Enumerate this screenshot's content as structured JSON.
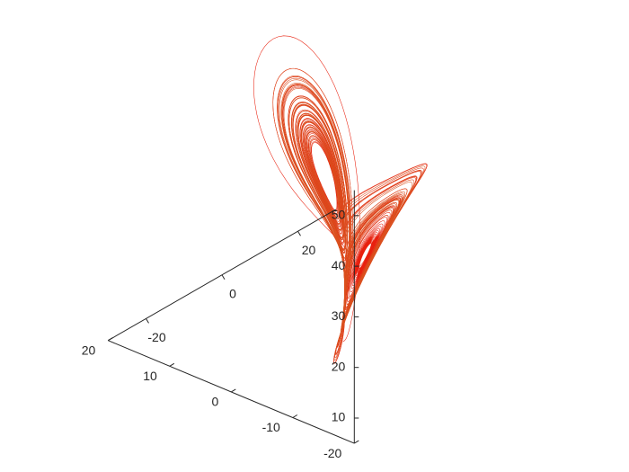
{
  "chart_data": {
    "type": "line",
    "title": "",
    "xlabel": "",
    "ylabel": "",
    "zlabel": "",
    "projection": "3d",
    "grid": false,
    "system": {
      "sigma": 10,
      "rho": 28,
      "beta": 2.6667,
      "initial_state": [
        1,
        1,
        1
      ],
      "dt": 0.005,
      "steps": 20000
    },
    "axes": {
      "x": {
        "lim": [
          -20,
          20
        ],
        "ticks": [
          -20,
          -10,
          0,
          10,
          20
        ],
        "tick_labels": [
          "-20",
          "-10",
          "0",
          "10",
          "20"
        ]
      },
      "y": {
        "lim": [
          -30,
          30
        ],
        "ticks": [
          -20,
          0,
          20
        ],
        "tick_labels": [
          "-20",
          "0",
          "20"
        ]
      },
      "z": {
        "lim": [
          5,
          55
        ],
        "ticks": [
          10,
          20,
          30,
          40,
          50
        ],
        "tick_labels": [
          "10",
          "20",
          "30",
          "40",
          "50"
        ]
      }
    },
    "colors": {
      "start": "#e8200e",
      "end": "#d9531f",
      "axis": "#262626",
      "background": "#ffffff"
    }
  }
}
